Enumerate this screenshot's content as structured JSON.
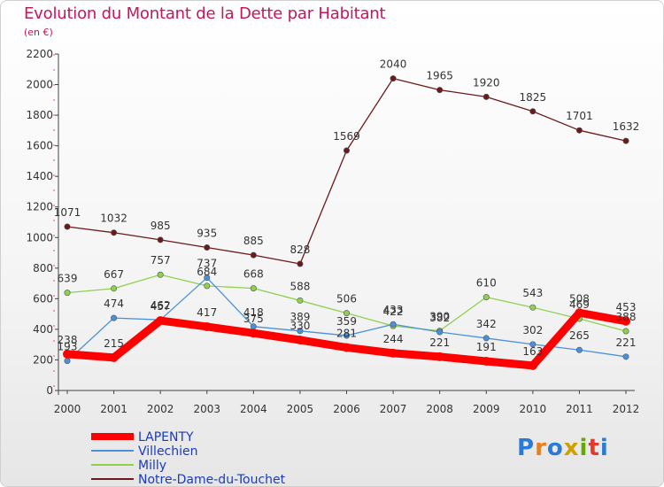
{
  "title": "Evolution du Montant de la Dette par Habitant",
  "subtitle": "(en €)",
  "logo": [
    "P",
    "r",
    "o",
    "x",
    "i",
    "t",
    "i"
  ],
  "chart_data": {
    "type": "line",
    "title": "Evolution du Montant de la Dette par Habitant",
    "subtitle": "(en €)",
    "xlabel": "",
    "ylabel": "",
    "x": [
      "2000",
      "2001",
      "2002",
      "2003",
      "2004",
      "2005",
      "2006",
      "2007",
      "2008",
      "2009",
      "2010",
      "2011",
      "2012"
    ],
    "ylim": [
      0,
      2200
    ],
    "yticks": [
      0,
      200,
      400,
      600,
      800,
      1000,
      1200,
      1400,
      1600,
      1800,
      2000,
      2200
    ],
    "grid": false,
    "legend_position": "bottom-left",
    "series": [
      {
        "name": "LAPENTY",
        "color": "#ff0000",
        "values": [
          238,
          215,
          457,
          417,
          375,
          330,
          281,
          244,
          221,
          191,
          163,
          508,
          453
        ]
      },
      {
        "name": "Villechien",
        "color": "#4a90d9",
        "values": [
          193,
          474,
          462,
          737,
          418,
          389,
          359,
          433,
          382,
          342,
          302,
          265,
          221
        ]
      },
      {
        "name": "Milly",
        "color": "#8fd14f",
        "values": [
          639,
          667,
          757,
          684,
          668,
          588,
          506,
          422,
          390,
          610,
          543,
          469,
          388
        ]
      },
      {
        "name": "Notre-Dame-du-Touchet",
        "color": "#6b1a1a",
        "values": [
          1071,
          1032,
          985,
          935,
          885,
          828,
          1569,
          2040,
          1965,
          1920,
          1825,
          1701,
          1632
        ]
      }
    ]
  }
}
